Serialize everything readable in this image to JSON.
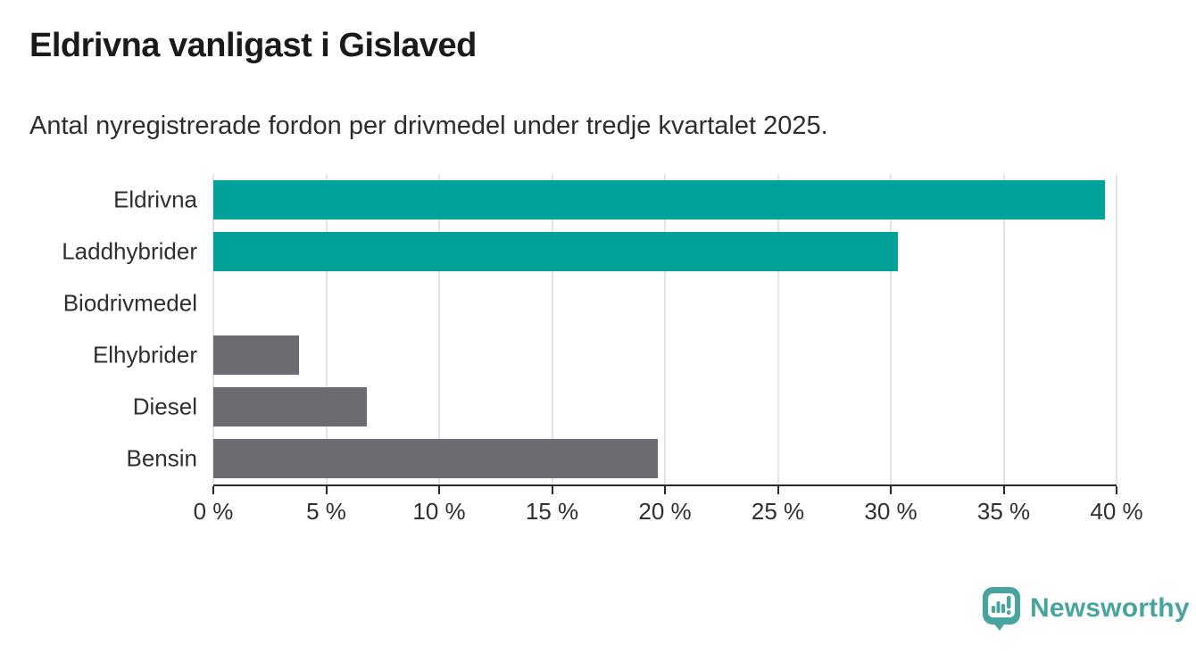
{
  "header": {
    "title": "Eldrivna vanligast i Gislaved",
    "subtitle": "Antal nyregistrerade fordon per drivmedel under tredje kvartalet 2025."
  },
  "chart_data": {
    "type": "bar",
    "orientation": "horizontal",
    "title": "Eldrivna vanligast i Gislaved",
    "subtitle": "Antal nyregistrerade fordon per drivmedel under tredje kvartalet 2025.",
    "categories": [
      "Eldrivna",
      "Laddhybrider",
      "Biodrivmedel",
      "Elhybrider",
      "Diesel",
      "Bensin"
    ],
    "values": [
      39.5,
      30.3,
      0,
      3.8,
      6.8,
      19.7
    ],
    "unit": "%",
    "series_colors": [
      "#00a199",
      "#00a199",
      "#6b6b72",
      "#6b6b72",
      "#6b6b72",
      "#6b6b72"
    ],
    "xlim": [
      0,
      40
    ],
    "x_ticks": [
      0,
      5,
      10,
      15,
      20,
      25,
      30,
      35,
      40
    ],
    "x_tick_labels": [
      "0 %",
      "5 %",
      "10 %",
      "15 %",
      "20 %",
      "25 %",
      "30 %",
      "35 %",
      "40 %"
    ],
    "xlabel": "",
    "ylabel": "",
    "grid": "vertical",
    "legend": "none"
  },
  "colors": {
    "accent_teal": "#00a199",
    "bar_gray": "#6b6b72",
    "gridline": "#e3e3e3",
    "axis": "#2b2b2b",
    "title_text": "#1a1a1a",
    "brand_teal": "#48a49f"
  },
  "footer": {
    "brand": "Newsworthy",
    "logo_icon": "newsworthy-logo"
  }
}
